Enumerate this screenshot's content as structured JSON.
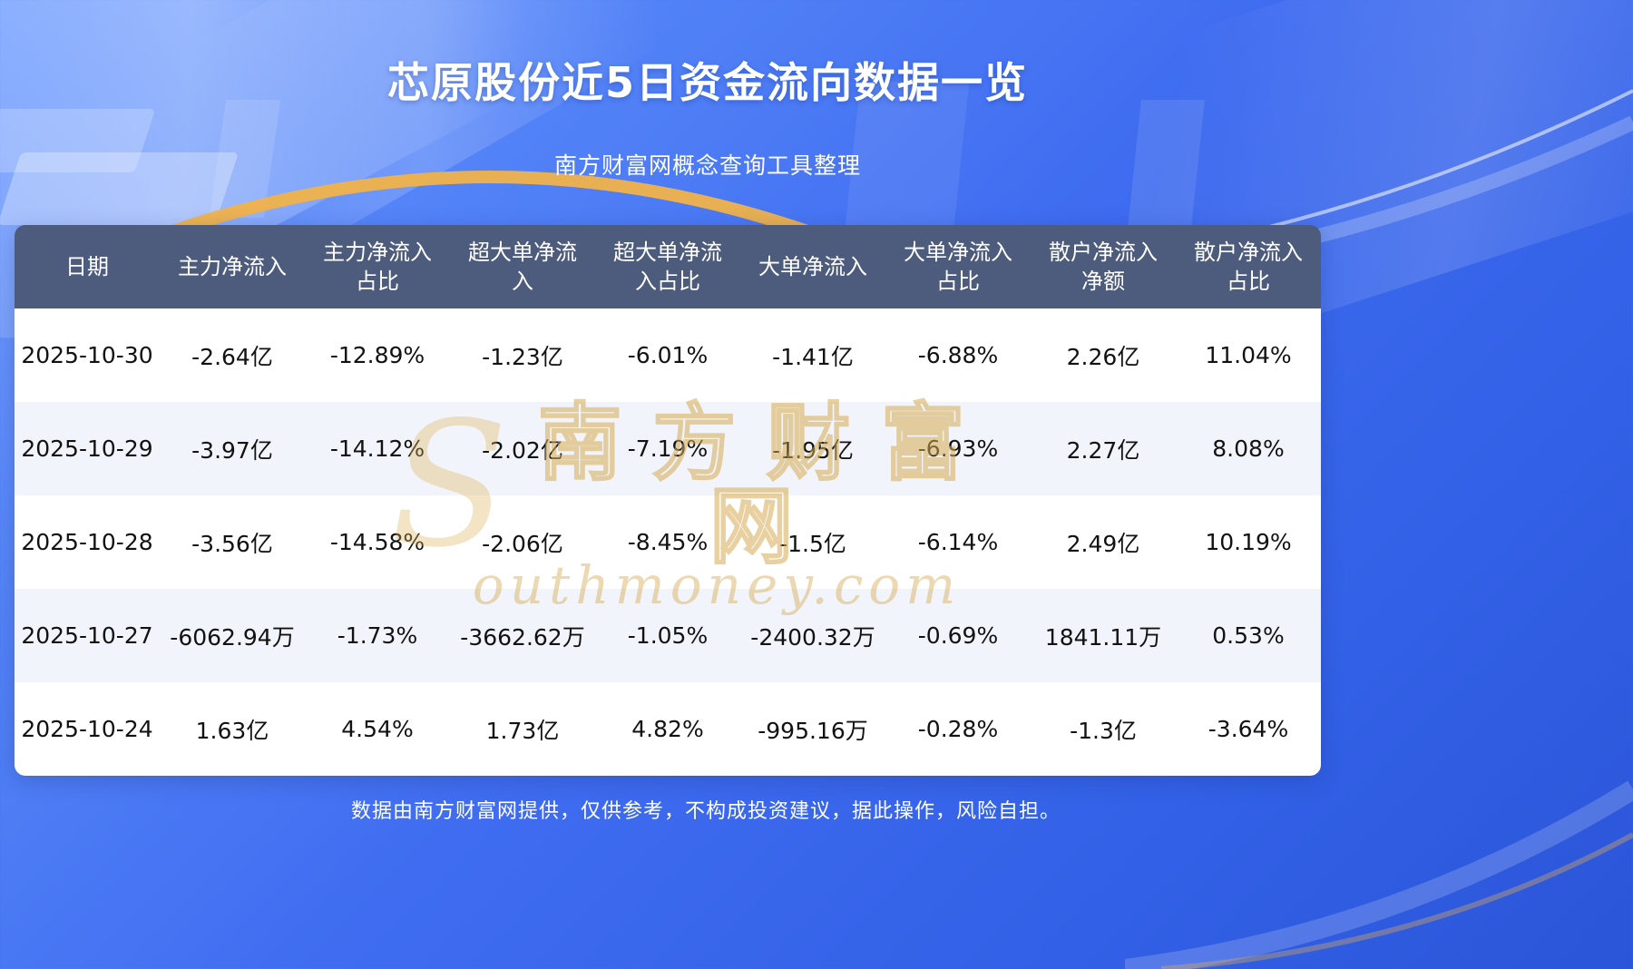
{
  "page": {
    "title": "芯原股份近5日资金流向数据一览",
    "subtitle": "南方财富网概念查询工具整理",
    "footer": "数据由南方财富网提供，仅供参考，不构成投资建议，据此操作，风险自担。"
  },
  "watermark": {
    "logo": "S",
    "cn": "南方财富网",
    "en": "outhmoney.com"
  },
  "colors": {
    "background_blue": "#3f6cf0",
    "header_row": "#4d5b7c",
    "gold_accent": "#f0b24a",
    "row_alt": "#f1f5fb"
  },
  "chart_data": {
    "type": "table",
    "title": "芯原股份近5日资金流向数据一览",
    "columns": [
      "日期",
      "主力净流入",
      "主力净流入占比",
      "超大单净流入",
      "超大单净流入占比",
      "大单净流入",
      "大单净流入占比",
      "散户净流入净额",
      "散户净流入占比"
    ],
    "rows": [
      [
        "2025-10-30",
        "-2.64亿",
        "-12.89%",
        "-1.23亿",
        "-6.01%",
        "-1.41亿",
        "-6.88%",
        "2.26亿",
        "11.04%"
      ],
      [
        "2025-10-29",
        "-3.97亿",
        "-14.12%",
        "-2.02亿",
        "-7.19%",
        "-1.95亿",
        "-6.93%",
        "2.27亿",
        "8.08%"
      ],
      [
        "2025-10-28",
        "-3.56亿",
        "-14.58%",
        "-2.06亿",
        "-8.45%",
        "-1.5亿",
        "-6.14%",
        "2.49亿",
        "10.19%"
      ],
      [
        "2025-10-27",
        "-6062.94万",
        "-1.73%",
        "-3662.62万",
        "-1.05%",
        "-2400.32万",
        "-0.69%",
        "1841.11万",
        "0.53%"
      ],
      [
        "2025-10-24",
        "1.63亿",
        "4.54%",
        "1.73亿",
        "4.82%",
        "-995.16万",
        "-0.28%",
        "-1.3亿",
        "-3.64%"
      ]
    ]
  }
}
